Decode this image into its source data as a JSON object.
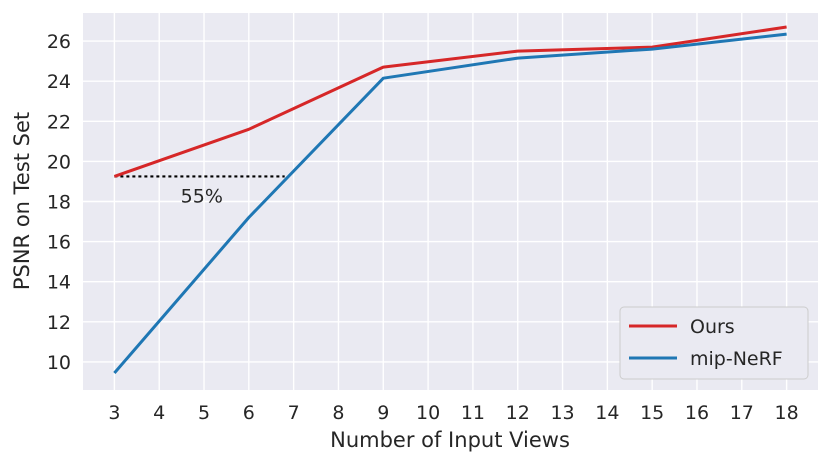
{
  "chart_data": {
    "type": "line",
    "title": "",
    "xlabel": "Number of Input Views",
    "ylabel": "PSNR on Test Set",
    "xlim": [
      2.3,
      18.7
    ],
    "ylim": [
      8.6,
      27.4
    ],
    "x_ticks": [
      3,
      4,
      5,
      6,
      7,
      8,
      9,
      10,
      11,
      12,
      13,
      14,
      15,
      16,
      17,
      18
    ],
    "y_ticks": [
      10,
      12,
      14,
      16,
      18,
      20,
      22,
      24,
      26
    ],
    "grid": true,
    "legend_position": "bottom-right",
    "series": [
      {
        "name": "Ours",
        "color": "#d62728",
        "x": [
          3,
          6,
          9,
          12,
          15,
          18
        ],
        "y": [
          19.25,
          21.6,
          24.7,
          25.5,
          25.7,
          26.7
        ]
      },
      {
        "name": "mip-NeRF",
        "color": "#1f77b4",
        "x": [
          3,
          6,
          9,
          12,
          15,
          18
        ],
        "y": [
          9.45,
          17.2,
          24.15,
          25.15,
          25.6,
          26.35
        ]
      }
    ],
    "annotations": [
      {
        "type": "dotted-line",
        "x": [
          3,
          6.8
        ],
        "y": 19.25,
        "color": "#000000"
      },
      {
        "type": "text",
        "text": "55%",
        "x": 4.95,
        "y": 18.3
      }
    ]
  }
}
